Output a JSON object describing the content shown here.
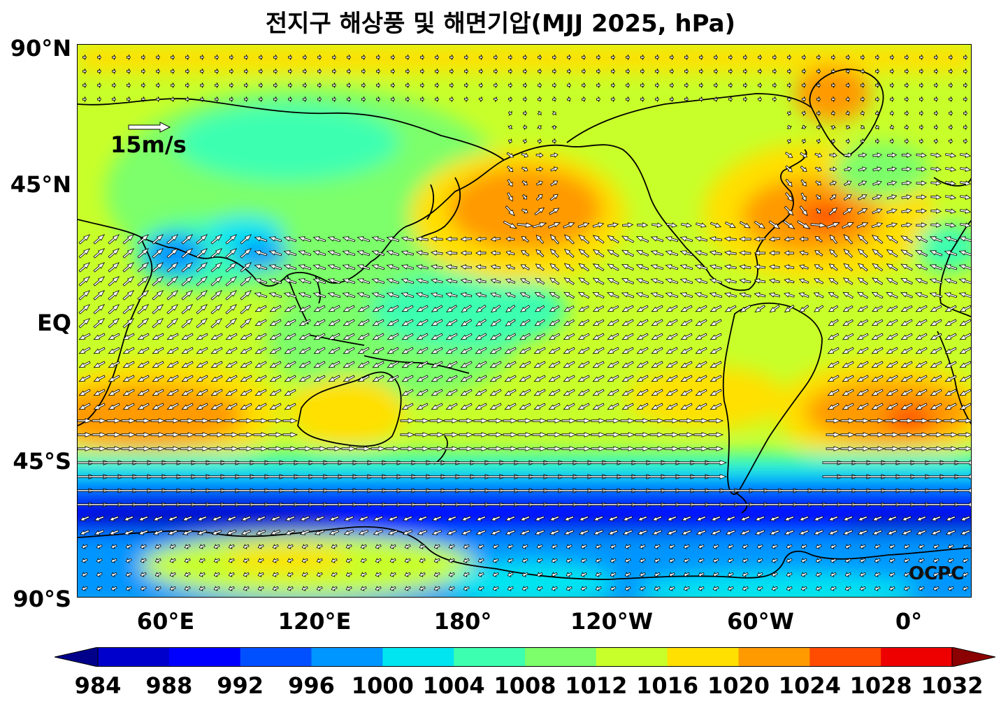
{
  "title": "전지구 해상풍 및 해면기압(MJJ 2025, hPa)",
  "lat_labels": [
    "90°N",
    "45°N",
    "EQ",
    "45°S",
    "90°S"
  ],
  "lon_labels": [
    "60°E",
    "120°E",
    "180°",
    "120°W",
    "60°W",
    "0°"
  ],
  "reference_vector": "15m/s",
  "watermark": "OCPC",
  "colorbar": {
    "labels": [
      "984",
      "988",
      "992",
      "996",
      "1000",
      "1004",
      "1008",
      "1012",
      "1016",
      "1020",
      "1024",
      "1028",
      "1032"
    ],
    "colors": [
      "#00008b",
      "#0000cd",
      "#0000ff",
      "#0050ff",
      "#0096ff",
      "#00e5f0",
      "#3cffb0",
      "#7cff6a",
      "#c8ff2a",
      "#ffe000",
      "#ff9a00",
      "#ff4c00",
      "#ee0000",
      "#8b0000"
    ]
  }
}
